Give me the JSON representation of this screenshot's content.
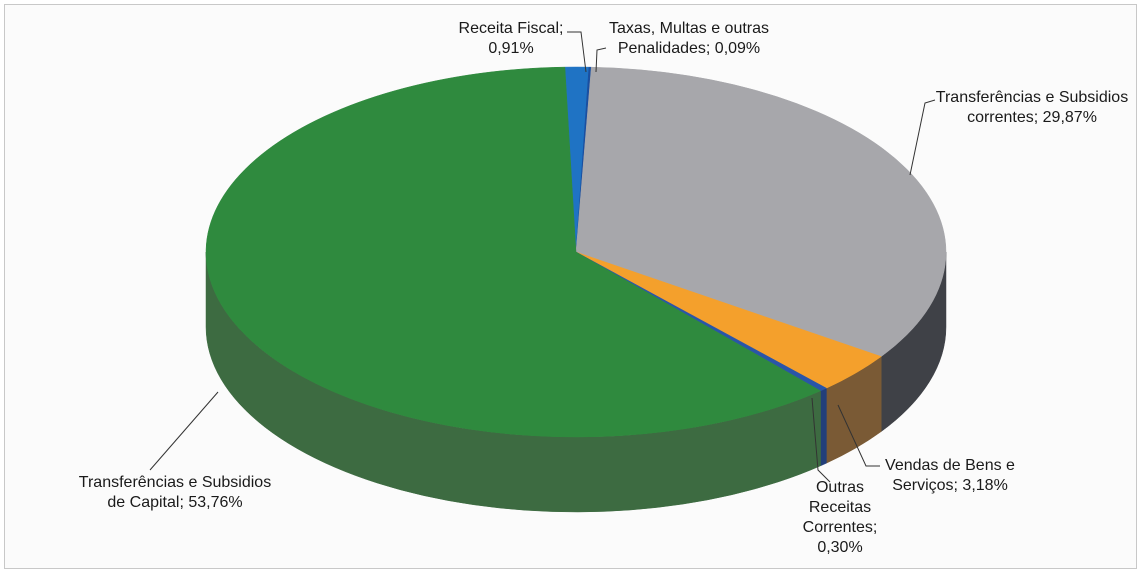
{
  "chart_data": {
    "type": "pie",
    "title": "",
    "legend": "none",
    "categories": [
      "Receita Fiscal",
      "Taxas, Multas e outras Penalidades",
      "Transferências e Subsidios correntes",
      "Vendas de Bens e Serviços",
      "Outras Receitas Correntes",
      "Transferências e Subsidios de Capital"
    ],
    "values": [
      0.91,
      0.09,
      29.87,
      3.18,
      0.3,
      53.76
    ],
    "unit": "%",
    "colors": [
      "#1f73c4",
      "#1a4fa0",
      "#a7a7ab",
      "#f4a02c",
      "#2a55a8",
      "#2f8a3e"
    ],
    "side_colors": [
      "#1a5590",
      "#163b74",
      "#3f4147",
      "#7a5a35",
      "#223f7a",
      "#3d6b41"
    ],
    "labels": [
      {
        "lines": [
          "Receita Fiscal;",
          "0,91%"
        ]
      },
      {
        "lines": [
          "Taxas, Multas e outras",
          "Penalidades; 0,09%"
        ]
      },
      {
        "lines": [
          "Transferências e Subsidios",
          "correntes; 29,87%"
        ]
      },
      {
        "lines": [
          "Vendas de Bens e",
          "Serviços; 3,18%"
        ]
      },
      {
        "lines": [
          "Outras",
          "Receitas",
          "Correntes;",
          "0,30%"
        ]
      },
      {
        "lines": [
          "Transferências e Subsidios",
          "de Capital; 53,76%"
        ]
      }
    ]
  }
}
